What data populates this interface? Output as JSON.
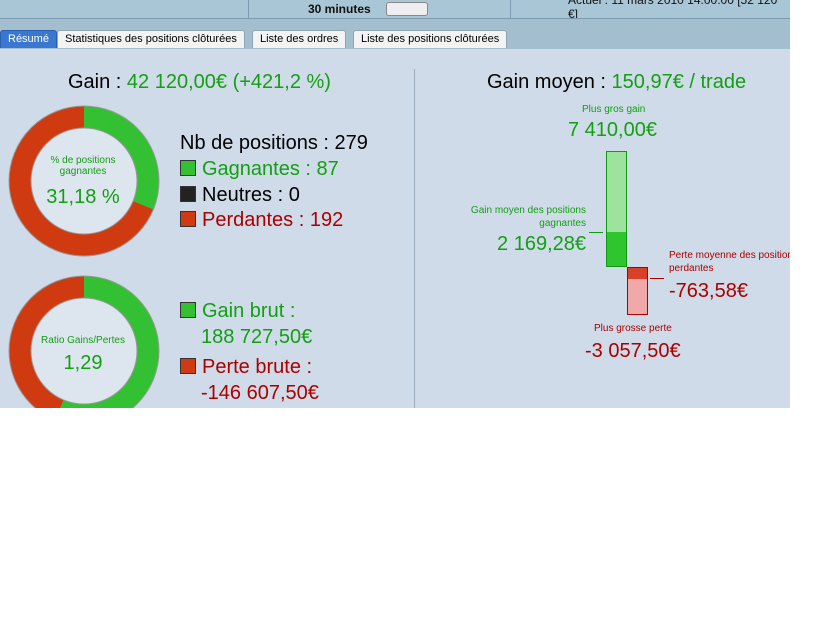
{
  "topbar": {
    "interval": "30 minutes",
    "current": "Actuel : 11 mars 2010 14:00:00 [52 120 €]"
  },
  "tabs": [
    "Résumé",
    "Statistiques des positions clôturées",
    "Liste des ordres",
    "Liste des positions clôturées"
  ],
  "left": {
    "gain_label": "Gain : ",
    "gain_value": "42 120,00€ (+421,2 %)",
    "donut1": {
      "label": "% de positions gagnantes",
      "value": "31,18 %",
      "fraction": 0.3118
    },
    "nb_positions": "Nb de positions : 279",
    "gagnantes": "Gagnantes : 87",
    "neutres": "Neutres : 0",
    "perdantes": "Perdantes : 192",
    "donut2": {
      "label": "Ratio Gains/Pertes",
      "value": "1,29",
      "fraction": 0.563
    },
    "gain_brut_label": "Gain brut :",
    "gain_brut_value": "188 727,50€",
    "perte_brute_label": "Perte brute :",
    "perte_brute_value": "-146 607,50€"
  },
  "right": {
    "gain_moyen_label": "Gain moyen : ",
    "gain_moyen_value": "150,97€ / trade",
    "plus_gros_gain_label": "Plus gros gain",
    "plus_gros_gain_value": "7 410,00€",
    "gain_moyen_gagnantes_label1": "Gain moyen des positions",
    "gain_moyen_gagnantes_label2": "gagnantes",
    "gain_moyen_gagnantes_value": "2 169,28€",
    "perte_moyenne_label1": "Perte moyenne des positions",
    "perte_moyenne_label2": "perdantes",
    "perte_moyenne_value": "-763,58€",
    "plus_grosse_perte_label": "Plus grosse perte",
    "plus_grosse_perte_value": "-3 057,50€"
  },
  "colors": {
    "green": "#12a012",
    "red": "#aa0000"
  }
}
